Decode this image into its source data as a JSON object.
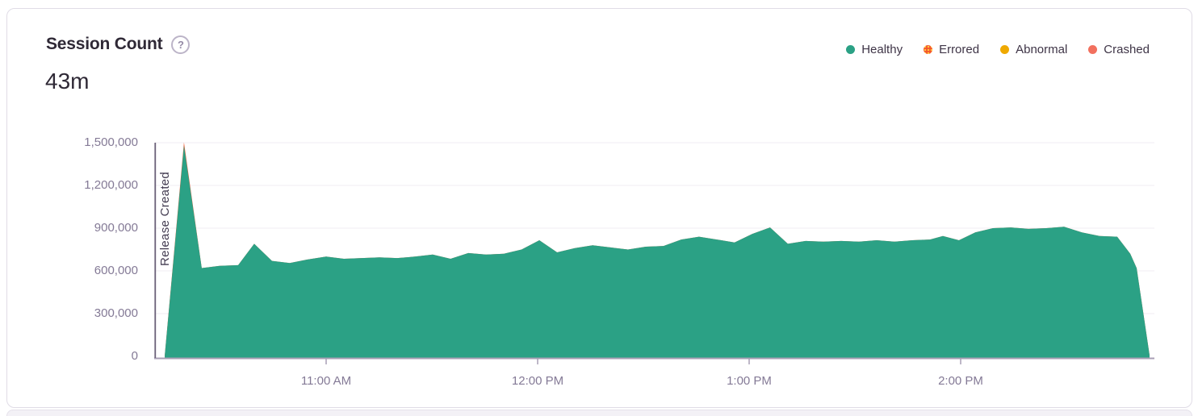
{
  "card": {
    "title": "Session Count",
    "help_icon": "?",
    "value": "43m"
  },
  "legend": [
    {
      "label": "Healthy",
      "color": "#2ba185",
      "style": "solid"
    },
    {
      "label": "Errored",
      "color": "#f4572e",
      "style": "speckled",
      "speckle_color": "#ffc53d"
    },
    {
      "label": "Abnormal",
      "color": "#efa901",
      "style": "solid"
    },
    {
      "label": "Crashed",
      "color": "#f2705e",
      "style": "solid"
    }
  ],
  "chart_data": {
    "type": "area",
    "stacked": true,
    "title": "Session Count",
    "grid": true,
    "legend_position": "top-right",
    "x_axis": {
      "unit": "time",
      "range_hours": [
        10.19,
        14.92
      ],
      "ticks": [
        {
          "t": 11,
          "label": "11:00 AM"
        },
        {
          "t": 12,
          "label": "12:00 PM"
        },
        {
          "t": 13,
          "label": "1:00 PM"
        },
        {
          "t": 14,
          "label": "2:00 PM"
        }
      ]
    },
    "y_axis": {
      "range": [
        0,
        1500000
      ],
      "ticks": [
        {
          "v": 0,
          "label": "0"
        },
        {
          "v": 300000,
          "label": "300,000"
        },
        {
          "v": 600000,
          "label": "600,000"
        },
        {
          "v": 900000,
          "label": "900,000"
        },
        {
          "v": 1200000,
          "label": "1,200,000"
        },
        {
          "v": 1500000,
          "label": "1,500,000"
        }
      ]
    },
    "annotation": {
      "label": "Release Created",
      "t": 10.19
    },
    "series": [
      {
        "name": "Healthy",
        "color": "#2ba185",
        "points": [
          [
            10.237,
            8000
          ],
          [
            10.328,
            1480000
          ],
          [
            10.412,
            620000
          ],
          [
            10.496,
            635000
          ],
          [
            10.584,
            640000
          ],
          [
            10.66,
            790000
          ],
          [
            10.744,
            670000
          ],
          [
            10.828,
            655000
          ],
          [
            10.912,
            680000
          ],
          [
            11.0,
            700000
          ],
          [
            11.084,
            685000
          ],
          [
            11.168,
            690000
          ],
          [
            11.252,
            695000
          ],
          [
            11.336,
            690000
          ],
          [
            11.42,
            700000
          ],
          [
            11.504,
            715000
          ],
          [
            11.588,
            685000
          ],
          [
            11.672,
            725000
          ],
          [
            11.756,
            715000
          ],
          [
            11.84,
            720000
          ],
          [
            11.924,
            750000
          ],
          [
            12.008,
            815000
          ],
          [
            12.092,
            730000
          ],
          [
            12.176,
            760000
          ],
          [
            12.26,
            780000
          ],
          [
            12.344,
            765000
          ],
          [
            12.427,
            750000
          ],
          [
            12.511,
            770000
          ],
          [
            12.595,
            775000
          ],
          [
            12.679,
            820000
          ],
          [
            12.763,
            840000
          ],
          [
            12.847,
            820000
          ],
          [
            12.931,
            800000
          ],
          [
            13.015,
            860000
          ],
          [
            13.099,
            905000
          ],
          [
            13.183,
            790000
          ],
          [
            13.267,
            810000
          ],
          [
            13.351,
            805000
          ],
          [
            13.435,
            810000
          ],
          [
            13.519,
            805000
          ],
          [
            13.603,
            815000
          ],
          [
            13.687,
            805000
          ],
          [
            13.771,
            815000
          ],
          [
            13.855,
            820000
          ],
          [
            13.916,
            845000
          ],
          [
            13.992,
            815000
          ],
          [
            14.069,
            870000
          ],
          [
            14.153,
            900000
          ],
          [
            14.237,
            905000
          ],
          [
            14.321,
            895000
          ],
          [
            14.405,
            900000
          ],
          [
            14.489,
            910000
          ],
          [
            14.573,
            870000
          ],
          [
            14.657,
            845000
          ],
          [
            14.74,
            840000
          ],
          [
            14.802,
            720000
          ],
          [
            14.832,
            620000
          ],
          [
            14.893,
            8000
          ]
        ]
      },
      {
        "name": "Errored",
        "color": "#f4572e",
        "points": [
          [
            10.237,
            0
          ],
          [
            10.328,
            22000
          ],
          [
            10.412,
            0
          ]
        ]
      },
      {
        "name": "Abnormal",
        "color": "#efa901",
        "points": []
      },
      {
        "name": "Crashed",
        "color": "#f2705e",
        "points": []
      }
    ]
  }
}
